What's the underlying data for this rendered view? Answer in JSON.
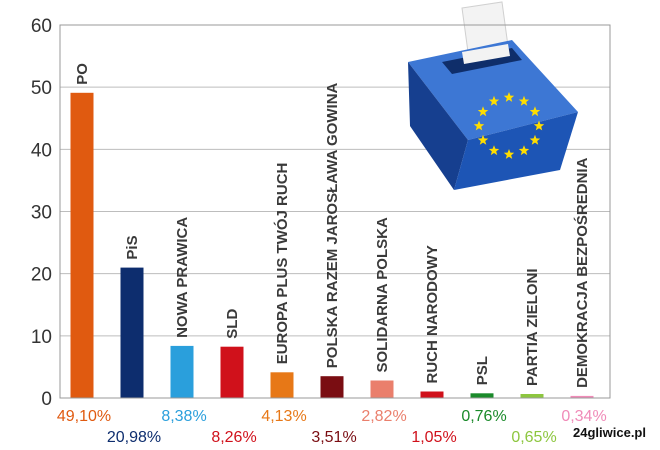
{
  "chart_data": {
    "type": "bar",
    "ylim": [
      0,
      60
    ],
    "yticks": [
      0,
      10,
      20,
      30,
      40,
      50,
      60
    ],
    "grid": true,
    "series": [
      {
        "categories": [
          "PO",
          "PiS",
          "NOWA PRAWICA",
          "SLD",
          "EUROPA PLUS TWÓJ RUCH",
          "POLSKA RAZEM JAROSŁAWA GOWINA",
          "SOLIDARNA POLSKA",
          "RUCH NARODOWY",
          "PSL",
          "PARTIA ZIELONI",
          "DEMOKRACJA BEZPOŚREDNIA"
        ],
        "values": [
          49.1,
          20.98,
          8.38,
          8.26,
          4.13,
          3.51,
          2.82,
          1.05,
          0.76,
          0.65,
          0.34
        ],
        "labels": [
          "49,10%",
          "20,98%",
          "8,38%",
          "8,26%",
          "4,13%",
          "3,51%",
          "2,82%",
          "1,05%",
          "0,76%",
          "0,65%",
          "0,34%"
        ],
        "colors": [
          "#e05a10",
          "#0d2d6e",
          "#2a9fdc",
          "#d0111b",
          "#e77817",
          "#7a0d12",
          "#ea7f6c",
          "#d0111b",
          "#1a8a2a",
          "#8dc63f",
          "#f08bb8"
        ]
      }
    ]
  },
  "illustration": {
    "name": "ballot-box-eu-flag",
    "colors": {
      "box": "#1d55b5",
      "stars": "#ffdd00",
      "ballot": "#f3f3f3"
    }
  },
  "watermark": "24gliwice.pl"
}
